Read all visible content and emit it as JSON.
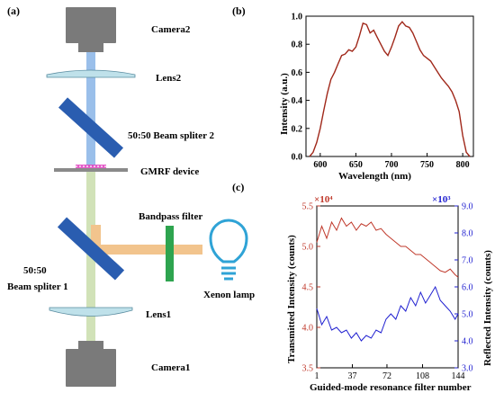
{
  "panels": {
    "a": "(a)",
    "b": "(b)",
    "c": "(c)"
  },
  "setup": {
    "camera2": "Camera2",
    "lens2": "Lens2",
    "beam_splitter2": "50:50 Beam spliter 2",
    "gmrf": "GMRF device",
    "bandpass": "Bandpass filter",
    "beam_splitter1_line1": "50:50",
    "beam_splitter1_line2": "Beam spliter 1",
    "xenon": "Xenon lamp",
    "lens1": "Lens1",
    "camera1": "Camera1"
  },
  "colors": {
    "camera": "#7a7a7a",
    "lens": "#bfe1ea",
    "beam_splitter": "#2a5db0",
    "upper_beam": "#8fb8e8",
    "lower_beam": "#cfe0b4",
    "lamp_beam": "#f2c48d",
    "filter": "#2ea44f",
    "gmrf_dots": "#e040c0",
    "spectrum_line": "#a0281a",
    "transmitted": "#c0392b",
    "reflected": "#1f1fd0"
  },
  "chart_data": [
    {
      "type": "line",
      "panel": "b",
      "xlabel": "Wavelength (nm)",
      "ylabel": "Intensity (a.u.)",
      "xlim": [
        580,
        815
      ],
      "ylim": [
        0,
        1.0
      ],
      "x_ticks": [
        "600",
        "650",
        "700",
        "750",
        "800"
      ],
      "y_ticks": [
        "0.0",
        "0.2",
        "0.4",
        "0.6",
        "0.8",
        "1.0"
      ],
      "series": [
        {
          "x": [
            585,
            590,
            595,
            600,
            605,
            610,
            615,
            620,
            625,
            630,
            635,
            640,
            645,
            650,
            655,
            660,
            665,
            670,
            675,
            680,
            685,
            690,
            695,
            700,
            705,
            710,
            715,
            720,
            725,
            730,
            735,
            740,
            745,
            750,
            755,
            760,
            765,
            770,
            775,
            780,
            785,
            790,
            795,
            800,
            805,
            810
          ],
          "y": [
            0.0,
            0.03,
            0.1,
            0.2,
            0.33,
            0.45,
            0.55,
            0.6,
            0.66,
            0.72,
            0.73,
            0.76,
            0.75,
            0.78,
            0.86,
            0.95,
            0.94,
            0.88,
            0.9,
            0.85,
            0.8,
            0.75,
            0.72,
            0.78,
            0.85,
            0.93,
            0.96,
            0.93,
            0.92,
            0.88,
            0.82,
            0.76,
            0.72,
            0.7,
            0.68,
            0.64,
            0.6,
            0.56,
            0.53,
            0.5,
            0.46,
            0.4,
            0.32,
            0.15,
            0.03,
            0.0
          ]
        }
      ]
    },
    {
      "type": "line",
      "panel": "c",
      "xlabel": "Guided-mode resonance filter number",
      "ylabel_left": "Transmitted Intensity (counts)",
      "ylabel_right": "Reflected Intensity (counts)",
      "scale_left": "×10⁴",
      "scale_right": "×10³",
      "xlim": [
        1,
        144
      ],
      "ylim_left": [
        3.5,
        5.5
      ],
      "ylim_right": [
        3.0,
        9.0
      ],
      "x_ticks": [
        "1",
        "37",
        "72",
        "108",
        "144"
      ],
      "y_ticks_left": [
        "3.5",
        "4.0",
        "4.5",
        "5.0",
        "5.5"
      ],
      "y_ticks_right": [
        "3.0",
        "4.0",
        "5.0",
        "6.0",
        "7.0",
        "8.0",
        "9.0"
      ],
      "series": [
        {
          "name": "Transmitted",
          "axis": "left",
          "x": [
            1,
            6,
            11,
            16,
            21,
            26,
            31,
            36,
            41,
            46,
            51,
            56,
            61,
            66,
            71,
            76,
            81,
            86,
            91,
            96,
            101,
            106,
            111,
            116,
            121,
            126,
            131,
            136,
            141,
            144
          ],
          "y": [
            5.05,
            5.25,
            5.1,
            5.3,
            5.2,
            5.35,
            5.25,
            5.3,
            5.2,
            5.28,
            5.25,
            5.3,
            5.2,
            5.22,
            5.15,
            5.1,
            5.05,
            5.0,
            5.0,
            4.95,
            4.9,
            4.9,
            4.85,
            4.8,
            4.75,
            4.7,
            4.68,
            4.72,
            4.65,
            4.62
          ]
        },
        {
          "name": "Reflected",
          "axis": "right",
          "x": [
            1,
            6,
            11,
            16,
            21,
            26,
            31,
            36,
            41,
            46,
            51,
            56,
            61,
            66,
            71,
            76,
            81,
            86,
            91,
            96,
            101,
            106,
            111,
            116,
            121,
            126,
            131,
            136,
            141,
            144
          ],
          "y": [
            5.2,
            4.6,
            4.9,
            4.4,
            4.5,
            4.3,
            4.4,
            4.1,
            4.3,
            4.0,
            4.2,
            4.1,
            4.4,
            4.3,
            4.8,
            5.0,
            4.8,
            5.3,
            5.1,
            5.6,
            5.3,
            5.8,
            5.4,
            5.7,
            6.0,
            5.5,
            5.3,
            5.1,
            4.8,
            5.0
          ]
        }
      ]
    }
  ]
}
